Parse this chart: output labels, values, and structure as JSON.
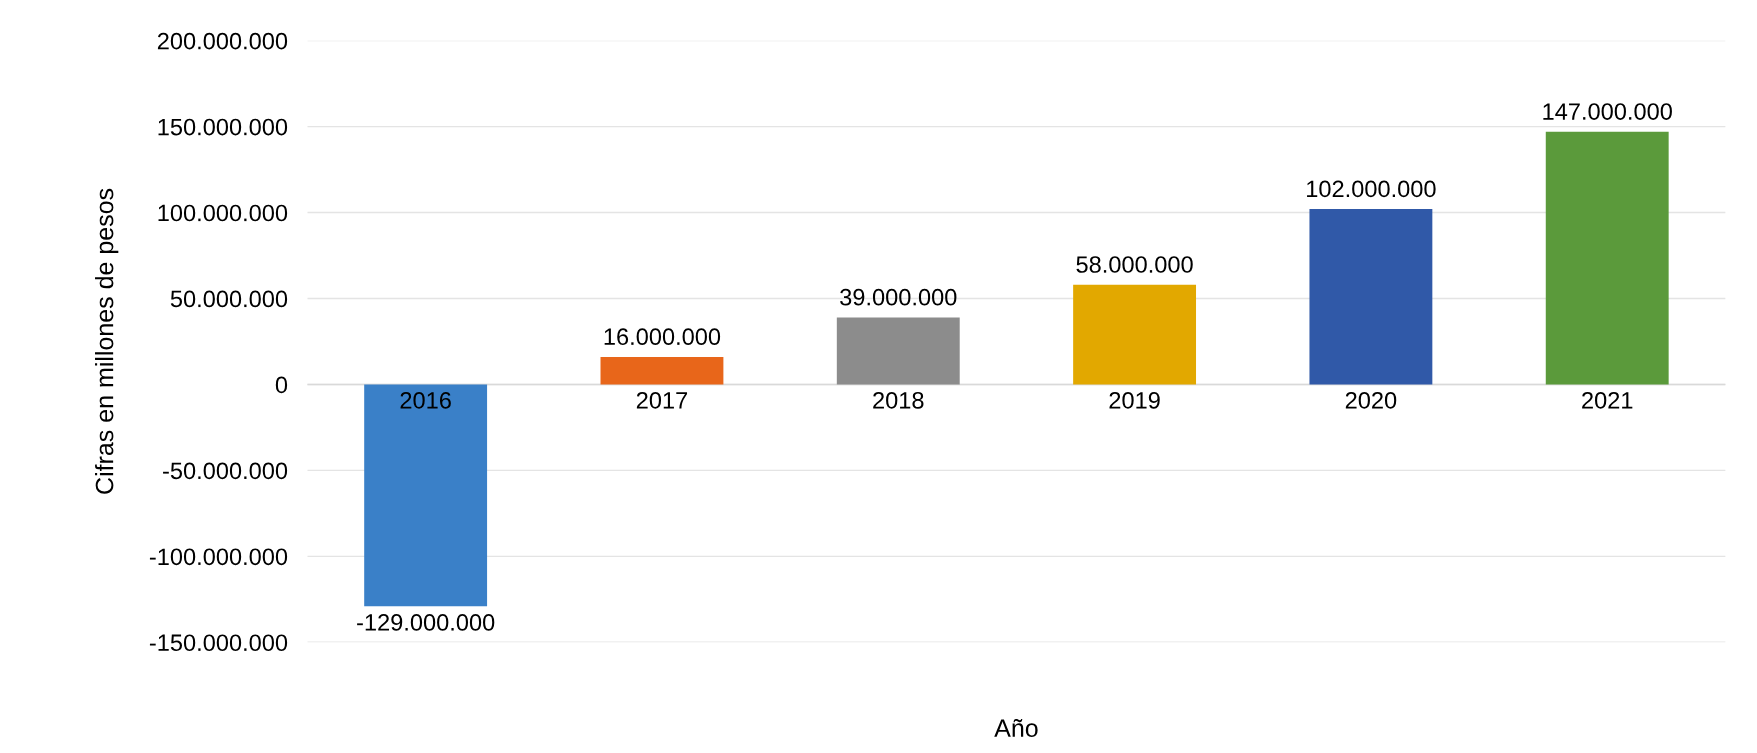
{
  "chart_data": {
    "type": "bar",
    "xlabel": "Año",
    "ylabel": "Cifras en millones de pesos",
    "categories": [
      "2016",
      "2017",
      "2018",
      "2019",
      "2020",
      "2021"
    ],
    "values": [
      -129000000,
      16000000,
      39000000,
      58000000,
      102000000,
      147000000
    ],
    "colors": [
      "#3a80c8",
      "#e8661a",
      "#8c8c8c",
      "#e2a800",
      "#3059a8",
      "#5b9a3b"
    ],
    "value_labels": [
      "-129.000.000",
      "16.000.000",
      "39.000.000",
      "58.000.000",
      "102.000.000",
      "147.000.000"
    ],
    "ylim": [
      -150000000,
      200000000
    ],
    "yticks": [
      {
        "value": -150000000,
        "label": "-150.000.000"
      },
      {
        "value": -100000000,
        "label": "-100.000.000"
      },
      {
        "value": -50000000,
        "label": "-50.000.000"
      },
      {
        "value": 0,
        "label": "0"
      },
      {
        "value": 50000000,
        "label": "50.000.000"
      },
      {
        "value": 100000000,
        "label": "100.000.000"
      },
      {
        "value": 150000000,
        "label": "150.000.000"
      },
      {
        "value": 200000000,
        "label": "200.000.000"
      }
    ],
    "grid": "y",
    "legend": false
  }
}
